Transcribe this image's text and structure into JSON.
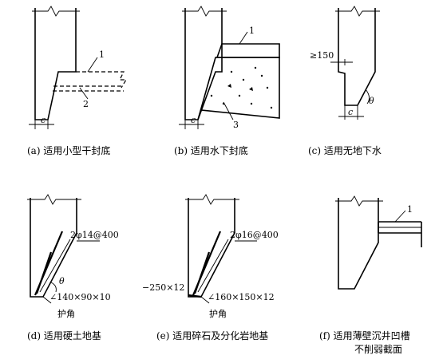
{
  "panels": {
    "a": {
      "caption": "(a) 适用小型干封底",
      "callouts": [
        "1",
        "2"
      ],
      "dim": "c"
    },
    "b": {
      "caption": "(b) 适用水下封底",
      "callouts": [
        "1",
        "3"
      ],
      "dim": "c"
    },
    "c": {
      "caption": "(c) 适用无地下水",
      "dim_top": "≥150",
      "angle": "θ",
      "dim": "c"
    },
    "d": {
      "caption": "(d) 适用硬土地基",
      "rebar": "2φ14@400",
      "angle": "θ",
      "steel": "∠140×90×10",
      "corner": "护角"
    },
    "e": {
      "caption": "(e) 适用碎石及分化岩地基",
      "rebar": "2φ16@400",
      "plate": "−250×12",
      "steel": "∠160×150×12",
      "corner": "护角"
    },
    "f": {
      "caption_line1": "(f) 适用薄壁沉井凹槽",
      "caption_line2": "不削弱截面",
      "callouts": [
        "1"
      ]
    }
  }
}
